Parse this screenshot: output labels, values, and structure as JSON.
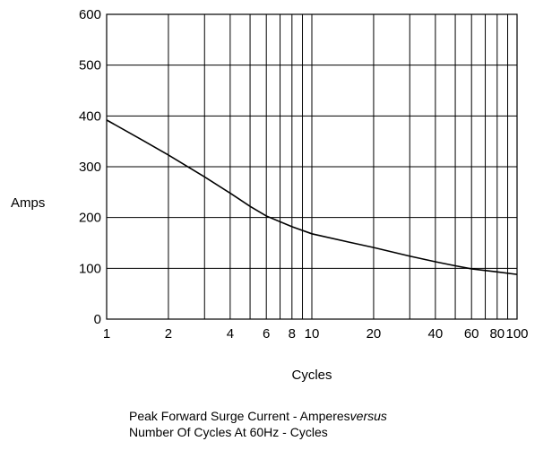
{
  "chart_data": {
    "type": "line",
    "title": "",
    "xlabel": "Cycles",
    "ylabel": "Amps",
    "x_scale": "log",
    "xlim": [
      1,
      100
    ],
    "ylim": [
      0,
      600
    ],
    "grid": true,
    "x_ticks": [
      1,
      2,
      4,
      6,
      8,
      10,
      20,
      40,
      60,
      80,
      100
    ],
    "y_ticks": [
      0,
      100,
      200,
      300,
      400,
      500,
      600
    ],
    "series": [
      {
        "x": [
          1,
          1.5,
          2,
          3,
          4,
          5,
          6,
          8,
          10,
          15,
          20,
          30,
          40,
          50,
          60,
          80,
          100
        ],
        "y": [
          392,
          352,
          323,
          280,
          248,
          222,
          203,
          182,
          168,
          152,
          141,
          124,
          113,
          105,
          99,
          93,
          88
        ]
      }
    ]
  },
  "caption": {
    "line1_main": "Peak Forward Surge Current - Amperes",
    "line1_italic": "versus",
    "line2": "Number Of Cycles At 60Hz - Cycles"
  }
}
